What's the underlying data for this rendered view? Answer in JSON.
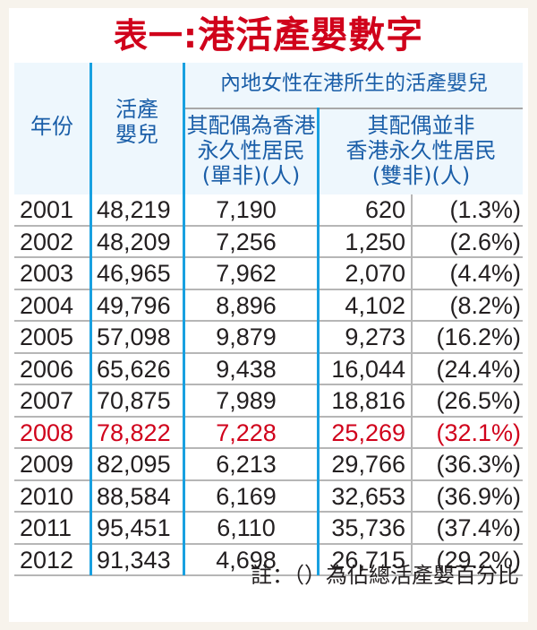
{
  "title": {
    "prefix": "表一:",
    "main": "港活產嬰數字"
  },
  "header": {
    "year": "年份",
    "total_line1": "活產",
    "total_line2": "嬰兒",
    "group": "內地女性在港所生的活產嬰兒",
    "single_line1": "其配偶為香港",
    "single_line2": "永久性居民",
    "single_line3": "(單非)(人)",
    "double_line1": "其配偶並非",
    "double_line2": "香港永久性居民",
    "double_line3": "(雙非)(人)"
  },
  "colors": {
    "title_red": "#d0021b",
    "header_blue_text": "#1a5ea8",
    "header_bg": "#eef7fd",
    "column_line_blue": "#18a0e0",
    "row_line_gray": "#b6b6b6",
    "highlight_red": "#d0021b",
    "page_bg": "#f7f3ec"
  },
  "rows": [
    {
      "year": "2001",
      "total": "48,219",
      "single": "7,190",
      "double": "620",
      "pct": "(1.3%)"
    },
    {
      "year": "2002",
      "total": "48,209",
      "single": "7,256",
      "double": "1,250",
      "pct": "(2.6%)"
    },
    {
      "year": "2003",
      "total": "46,965",
      "single": "7,962",
      "double": "2,070",
      "pct": "(4.4%)"
    },
    {
      "year": "2004",
      "total": "49,796",
      "single": "8,896",
      "double": "4,102",
      "pct": "(8.2%)"
    },
    {
      "year": "2005",
      "total": "57,098",
      "single": "9,879",
      "double": "9,273",
      "pct": "(16.2%)"
    },
    {
      "year": "2006",
      "total": "65,626",
      "single": "9,438",
      "double": "16,044",
      "pct": "(24.4%)"
    },
    {
      "year": "2007",
      "total": "70,875",
      "single": "7,989",
      "double": "18,816",
      "pct": "(26.5%)"
    },
    {
      "year": "2008",
      "total": "78,822",
      "single": "7,228",
      "double": "25,269",
      "pct": "(32.1%)",
      "highlight": true
    },
    {
      "year": "2009",
      "total": "82,095",
      "single": "6,213",
      "double": "29,766",
      "pct": "(36.3%)"
    },
    {
      "year": "2010",
      "total": "88,584",
      "single": "6,169",
      "double": "32,653",
      "pct": "(36.9%)"
    },
    {
      "year": "2011",
      "total": "95,451",
      "single": "6,110",
      "double": "35,736",
      "pct": "(37.4%)"
    },
    {
      "year": "2012",
      "total": "91,343",
      "single": "4,698",
      "double": "26,715",
      "pct": "(29.2%)"
    }
  ],
  "note": "註：（）為佔總活產嬰百分比"
}
